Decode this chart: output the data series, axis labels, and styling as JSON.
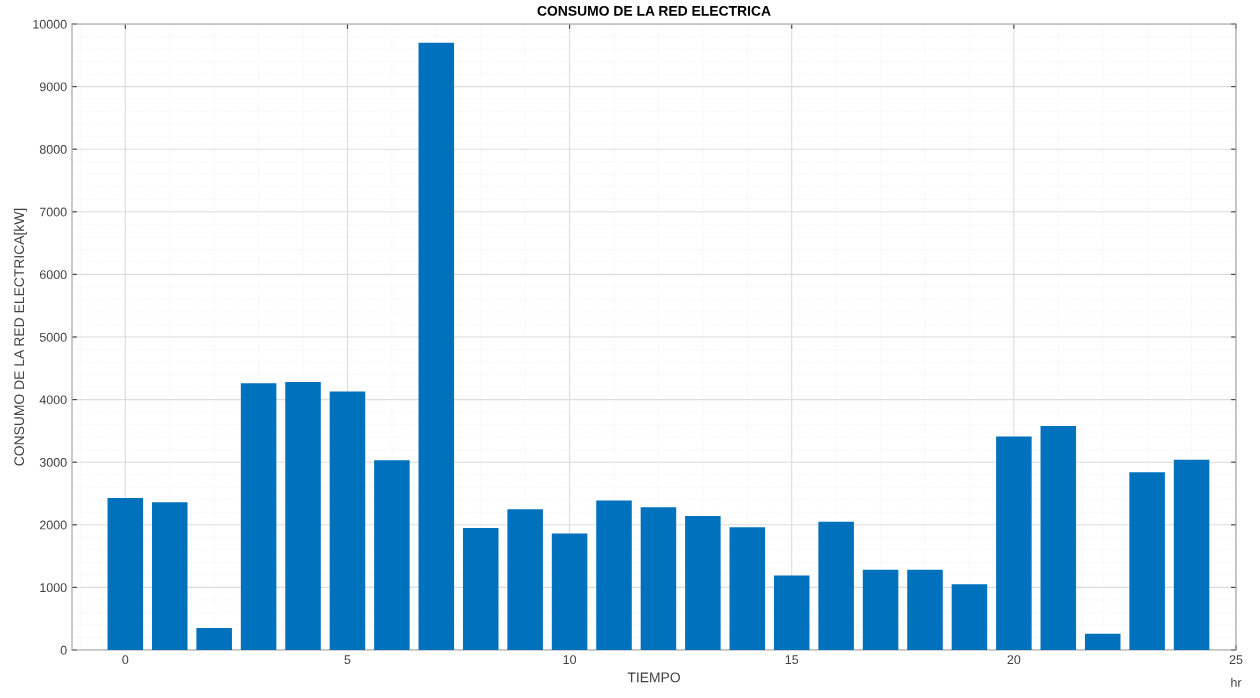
{
  "chart_data": {
    "type": "bar",
    "title": "CONSUMO DE LA RED ELECTRICA",
    "xlabel": "TIEMPO",
    "ylabel": "CONSUMO DE LA RED ELECTRICA[kW]",
    "x": [
      0,
      1,
      2,
      3,
      4,
      5,
      6,
      7,
      8,
      9,
      10,
      11,
      12,
      13,
      14,
      15,
      16,
      17,
      18,
      19,
      20,
      21,
      22,
      23,
      24
    ],
    "values": [
      2430,
      2360,
      350,
      4260,
      4280,
      4130,
      3030,
      9700,
      1950,
      2250,
      1860,
      2390,
      2280,
      2140,
      1960,
      1190,
      2050,
      1280,
      1280,
      1050,
      3410,
      3580,
      260,
      2840,
      3040
    ],
    "color": "#0072bd",
    "xlim": [
      -1.2,
      25
    ],
    "xticks": [
      0,
      5,
      10,
      15,
      20,
      25
    ],
    "ylim": [
      0,
      10000
    ],
    "yticks": [
      0,
      1000,
      2000,
      3000,
      4000,
      5000,
      6000,
      7000,
      8000,
      9000,
      10000
    ],
    "grid": true,
    "annotations": [
      "hr"
    ]
  }
}
